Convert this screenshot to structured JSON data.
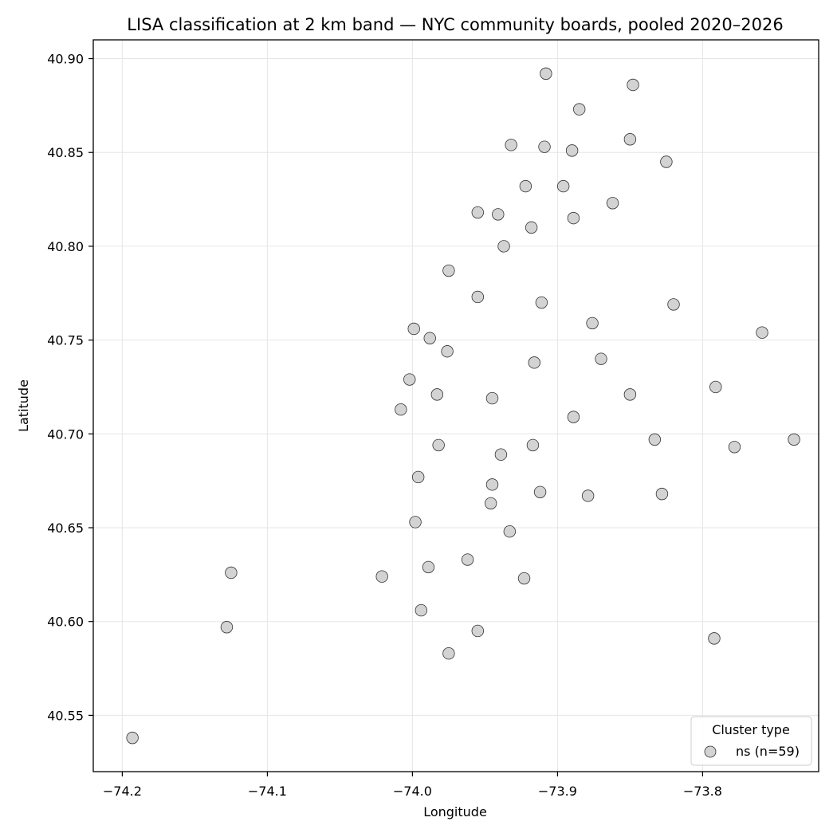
{
  "chart_data": {
    "type": "scatter",
    "title": "LISA classification at 2 km band — NYC community boards, pooled 2020–2026",
    "xlabel": "Longitude",
    "ylabel": "Latitude",
    "xlim": [
      -74.22,
      -73.72
    ],
    "ylim": [
      40.52,
      40.91
    ],
    "xticks": [
      -74.2,
      -74.1,
      -74.0,
      -73.9,
      -73.8
    ],
    "xtick_labels": [
      "−74.2",
      "−74.1",
      "−74.0",
      "−73.9",
      "−73.8"
    ],
    "yticks": [
      40.55,
      40.6,
      40.65,
      40.7,
      40.75,
      40.8,
      40.85,
      40.9
    ],
    "ytick_labels": [
      "40.55",
      "40.60",
      "40.65",
      "40.70",
      "40.75",
      "40.80",
      "40.85",
      "40.90"
    ],
    "grid": true,
    "legend": {
      "title": "Cluster type",
      "position": "lower-right",
      "entries": [
        {
          "label": "ns (n=59)",
          "color": "#d3d3d3"
        }
      ]
    },
    "series": [
      {
        "name": "ns (n=59)",
        "color": "#d3d3d3",
        "edgecolor": "#333333",
        "points": [
          [
            -73.908,
            40.892
          ],
          [
            -73.848,
            40.886
          ],
          [
            -73.885,
            40.873
          ],
          [
            -73.932,
            40.854
          ],
          [
            -73.909,
            40.853
          ],
          [
            -73.89,
            40.851
          ],
          [
            -73.85,
            40.857
          ],
          [
            -73.825,
            40.845
          ],
          [
            -73.922,
            40.832
          ],
          [
            -73.896,
            40.832
          ],
          [
            -73.862,
            40.823
          ],
          [
            -73.955,
            40.818
          ],
          [
            -73.941,
            40.817
          ],
          [
            -73.889,
            40.815
          ],
          [
            -73.918,
            40.81
          ],
          [
            -73.937,
            40.8
          ],
          [
            -73.975,
            40.787
          ],
          [
            -73.955,
            40.773
          ],
          [
            -73.911,
            40.77
          ],
          [
            -73.82,
            40.769
          ],
          [
            -73.876,
            40.759
          ],
          [
            -73.759,
            40.754
          ],
          [
            -73.999,
            40.756
          ],
          [
            -73.988,
            40.751
          ],
          [
            -73.976,
            40.744
          ],
          [
            -73.916,
            40.738
          ],
          [
            -73.87,
            40.74
          ],
          [
            -74.002,
            40.729
          ],
          [
            -73.791,
            40.725
          ],
          [
            -73.983,
            40.721
          ],
          [
            -73.945,
            40.719
          ],
          [
            -73.85,
            40.721
          ],
          [
            -74.008,
            40.713
          ],
          [
            -73.889,
            40.709
          ],
          [
            -73.982,
            40.694
          ],
          [
            -73.917,
            40.694
          ],
          [
            -73.833,
            40.697
          ],
          [
            -73.737,
            40.697
          ],
          [
            -73.778,
            40.693
          ],
          [
            -73.939,
            40.689
          ],
          [
            -73.996,
            40.677
          ],
          [
            -73.945,
            40.673
          ],
          [
            -73.912,
            40.669
          ],
          [
            -73.879,
            40.667
          ],
          [
            -73.828,
            40.668
          ],
          [
            -73.946,
            40.663
          ],
          [
            -73.998,
            40.653
          ],
          [
            -73.933,
            40.648
          ],
          [
            -74.125,
            40.626
          ],
          [
            -74.021,
            40.624
          ],
          [
            -73.962,
            40.633
          ],
          [
            -73.989,
            40.629
          ],
          [
            -73.923,
            40.623
          ],
          [
            -73.994,
            40.606
          ],
          [
            -74.128,
            40.597
          ],
          [
            -73.955,
            40.595
          ],
          [
            -73.792,
            40.591
          ],
          [
            -73.975,
            40.583
          ],
          [
            -74.193,
            40.538
          ]
        ]
      }
    ]
  }
}
